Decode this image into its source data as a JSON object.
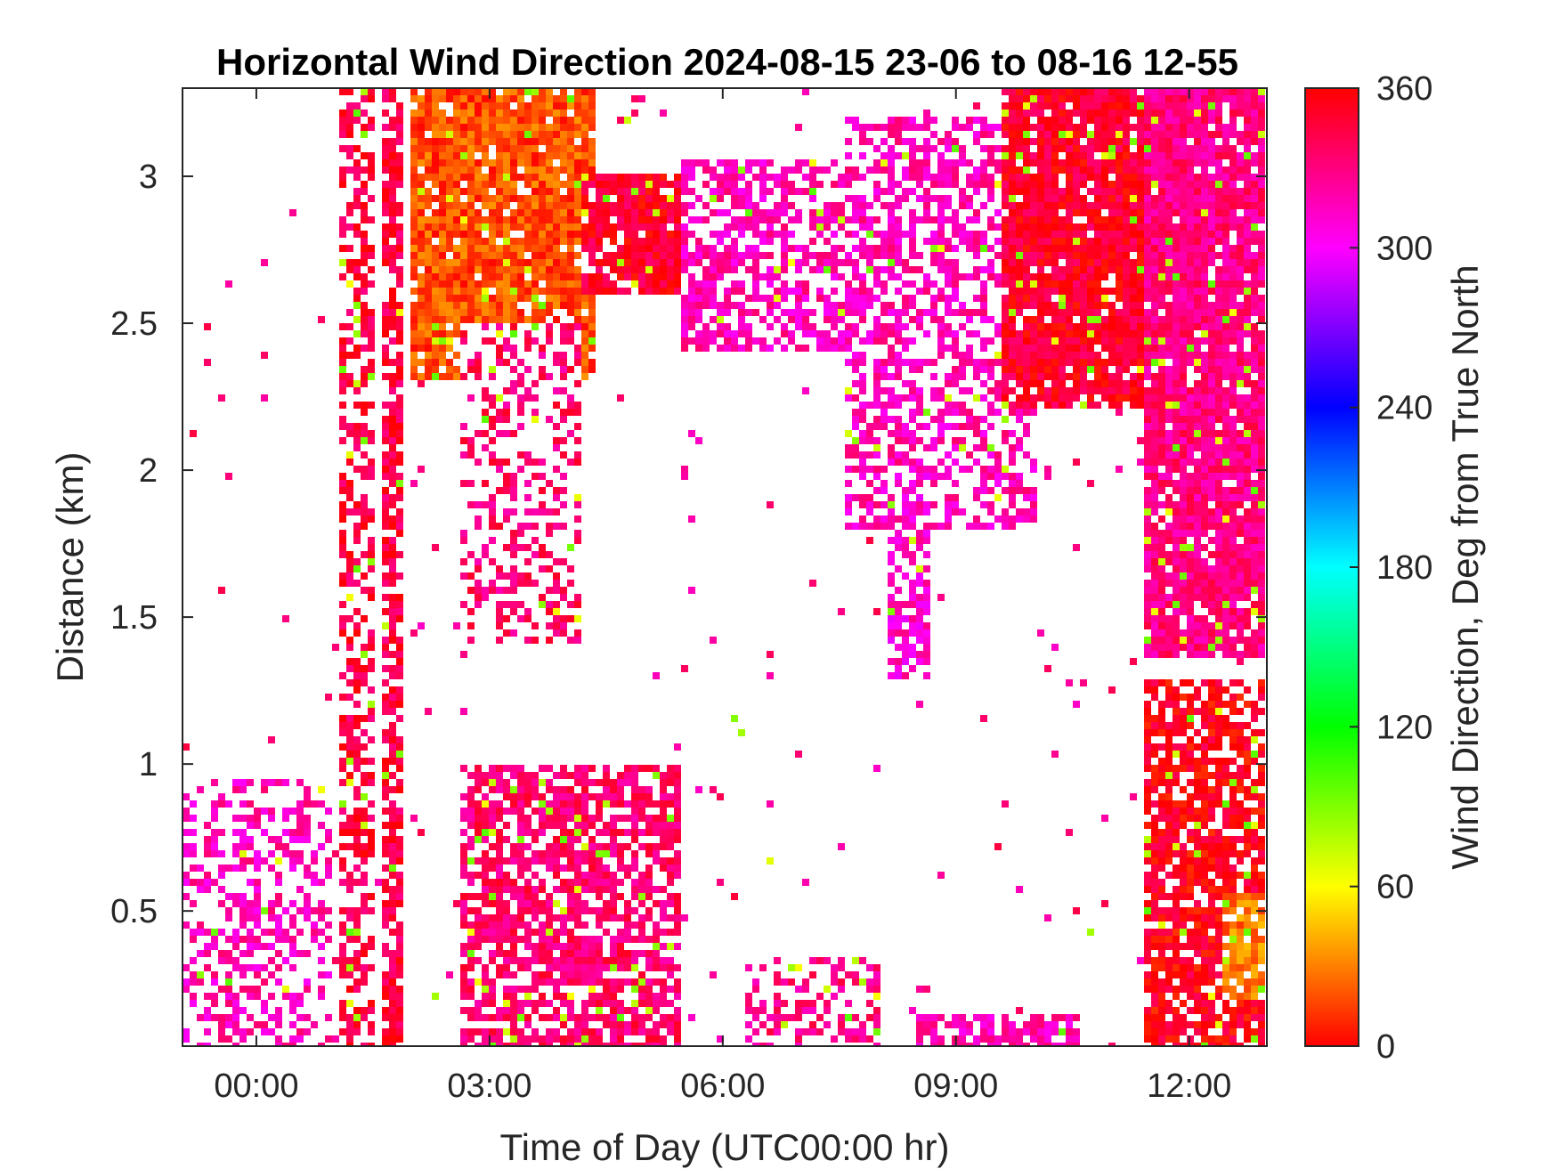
{
  "chart_data": {
    "type": "heatmap",
    "title": "Horizontal Wind Direction 2024-08-15 23-06 to 08-16 12-55",
    "xlabel": "Time of Day (UTC00:00 hr)",
    "ylabel": "Distance (km)",
    "colorbar_label": "Wind Direction, Deg from True North",
    "x_ticks": [
      "00:00",
      "03:00",
      "06:00",
      "09:00",
      "12:00"
    ],
    "x_tick_values": [
      0,
      3,
      6,
      9,
      12
    ],
    "xlim": [
      -0.95,
      13.0
    ],
    "y_ticks": [
      "0.5",
      "1",
      "1.5",
      "2",
      "2.5",
      "3"
    ],
    "y_tick_values": [
      0.5,
      1,
      1.5,
      2,
      2.5,
      3
    ],
    "ylim": [
      0.04,
      3.3
    ],
    "colorbar_ticks": [
      "0",
      "60",
      "120",
      "180",
      "240",
      "300",
      "360"
    ],
    "colorbar_tick_values": [
      0,
      60,
      120,
      180,
      240,
      300,
      360
    ],
    "clim": [
      0,
      360
    ],
    "colormap": [
      "#ff0000",
      "#ffff00",
      "#00ff00",
      "#00ffff",
      "#0000ff",
      "#ff00ff",
      "#ff0000"
    ],
    "grid": false,
    "regions": [
      {
        "x": [
          -0.95,
          1.0
        ],
        "y": [
          0.04,
          0.95
        ],
        "dir": 318,
        "density": 0.42
      },
      {
        "x": [
          1.1,
          1.5
        ],
        "y": [
          0.04,
          3.3
        ],
        "dir": 345,
        "density": 0.55
      },
      {
        "x": [
          1.6,
          1.85
        ],
        "y": [
          0.04,
          3.3
        ],
        "dir": 345,
        "density": 0.7
      },
      {
        "x": [
          2.0,
          4.4
        ],
        "y": [
          2.3,
          3.3
        ],
        "dir": 18,
        "density": 0.9
      },
      {
        "x": [
          2.6,
          4.2
        ],
        "y": [
          1.4,
          2.5
        ],
        "dir": 335,
        "density": 0.38
      },
      {
        "x": [
          2.6,
          5.5
        ],
        "y": [
          0.04,
          1.0
        ],
        "dir": 335,
        "density": 0.72
      },
      {
        "x": [
          4.2,
          7.2
        ],
        "y": [
          2.6,
          3.0
        ],
        "dir": 350,
        "density": 0.92
      },
      {
        "x": [
          5.5,
          7.6
        ],
        "y": [
          2.4,
          3.05
        ],
        "dir": 318,
        "density": 0.6
      },
      {
        "x": [
          7.6,
          10.0
        ],
        "y": [
          1.8,
          3.2
        ],
        "dir": 318,
        "density": 0.55
      },
      {
        "x": [
          8.1,
          8.7
        ],
        "y": [
          1.3,
          2.0
        ],
        "dir": 312,
        "density": 0.6
      },
      {
        "x": [
          8.5,
          10.6
        ],
        "y": [
          0.04,
          0.15
        ],
        "dir": 318,
        "density": 0.75
      },
      {
        "x": [
          6.3,
          8.0
        ],
        "y": [
          0.04,
          0.35
        ],
        "dir": 330,
        "density": 0.45
      },
      {
        "x": [
          9.6,
          11.6
        ],
        "y": [
          2.2,
          3.3
        ],
        "dir": 350,
        "density": 0.9
      },
      {
        "x": [
          11.4,
          13.0
        ],
        "y": [
          1.35,
          3.3
        ],
        "dir": 330,
        "density": 0.92
      },
      {
        "x": [
          11.4,
          13.0
        ],
        "y": [
          0.04,
          1.3
        ],
        "dir": 355,
        "density": 0.78
      },
      {
        "x": [
          12.4,
          13.0
        ],
        "y": [
          0.2,
          0.55
        ],
        "dir": 28,
        "density": 0.8
      }
    ]
  }
}
